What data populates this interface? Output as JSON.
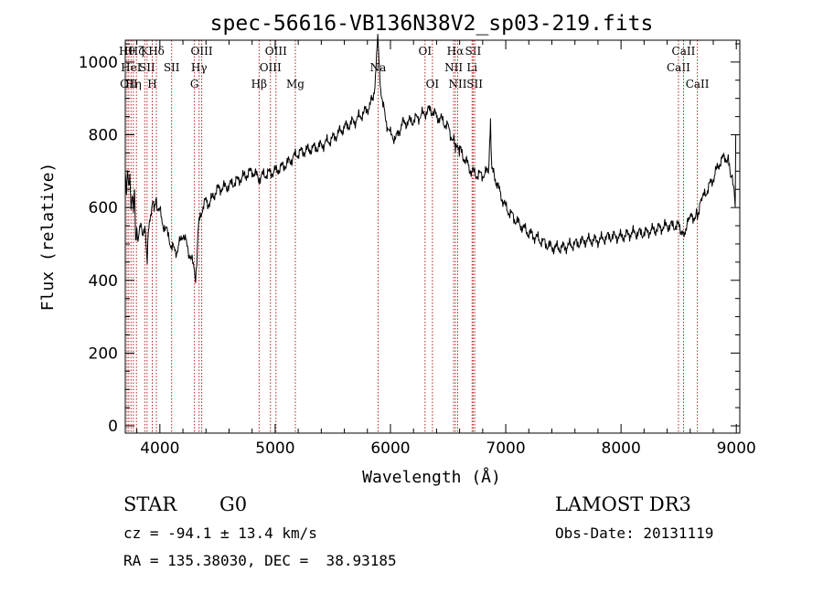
{
  "chart_data": {
    "type": "line",
    "title": "spec-56616-VB136N38V2_sp03-219.fits",
    "xlabel": "Wavelength (Å)",
    "ylabel": "Flux (relative)",
    "xlim": [
      3700,
      9030
    ],
    "ylim": [
      -20,
      1060
    ],
    "xticks": [
      4000,
      5000,
      6000,
      7000,
      8000,
      9000
    ],
    "yticks": [
      0,
      200,
      400,
      600,
      800,
      1000
    ],
    "series_color": "#000000",
    "line_color": "#b22222",
    "spectrum": {
      "x": [
        3700,
        3710,
        3720,
        3730,
        3740,
        3750,
        3760,
        3770,
        3780,
        3790,
        3800,
        3810,
        3830,
        3850,
        3870,
        3880,
        3890,
        3900,
        3910,
        3920,
        3930,
        3940,
        3950,
        3960,
        3970,
        3980,
        4000,
        4020,
        4050,
        4080,
        4100,
        4150,
        4200,
        4230,
        4260,
        4290,
        4300,
        4310,
        4320,
        4330,
        4340,
        4360,
        4400,
        4430,
        4460,
        4500,
        4600,
        4700,
        4800,
        4860,
        4900,
        5000,
        5100,
        5200,
        5300,
        5400,
        5500,
        5600,
        5700,
        5800,
        5850,
        5870,
        5880,
        5890,
        5895,
        5900,
        5910,
        5930,
        5960,
        6000,
        6050,
        6100,
        6200,
        6300,
        6350,
        6400,
        6450,
        6500,
        6550,
        6563,
        6600,
        6650,
        6700,
        6750,
        6800,
        6850,
        6868,
        6880,
        6900,
        6950,
        7000,
        7100,
        7200,
        7300,
        7400,
        7500,
        7600,
        7700,
        7800,
        7900,
        8000,
        8100,
        8200,
        8300,
        8400,
        8500,
        8542,
        8600,
        8662,
        8700,
        8750,
        8800,
        8850,
        8900,
        8930,
        8950,
        8960,
        8970,
        8980,
        8990,
        8995
      ],
      "y": [
        720,
        640,
        700,
        640,
        690,
        600,
        650,
        590,
        640,
        500,
        540,
        520,
        550,
        520,
        560,
        500,
        440,
        530,
        560,
        590,
        600,
        620,
        580,
        610,
        630,
        600,
        590,
        560,
        540,
        520,
        490,
        480,
        530,
        500,
        470,
        440,
        430,
        410,
        450,
        520,
        560,
        590,
        620,
        610,
        630,
        650,
        660,
        680,
        700,
        680,
        690,
        700,
        720,
        750,
        760,
        770,
        790,
        820,
        840,
        870,
        900,
        960,
        1020,
        1060,
        1040,
        1010,
        950,
        890,
        840,
        800,
        790,
        830,
        840,
        860,
        870,
        850,
        840,
        820,
        780,
        760,
        760,
        730,
        700,
        690,
        690,
        700,
        840,
        700,
        690,
        640,
        600,
        560,
        530,
        510,
        490,
        490,
        500,
        510,
        510,
        520,
        520,
        530,
        530,
        540,
        550,
        550,
        530,
        570,
        580,
        620,
        650,
        680,
        720,
        740,
        730,
        680,
        700,
        680,
        650,
        590,
        800
      ]
    },
    "spectral_lines": [
      {
        "wavelength": 3715,
        "label": "Hθ",
        "row": 0
      },
      {
        "wavelength": 3730,
        "label": "OII",
        "row": 2
      },
      {
        "wavelength": 3750,
        "label": "HeI",
        "row": 1
      },
      {
        "wavelength": 3770,
        "label": "Hη",
        "row": 2
      },
      {
        "wavelength": 3797,
        "label": "Hζ",
        "row": 0
      },
      {
        "wavelength": 3869,
        "label": "K",
        "row": 0
      },
      {
        "wavelength": 3889,
        "label": "SII",
        "row": 1
      },
      {
        "wavelength": 3934,
        "label": "H",
        "row": 2
      },
      {
        "wavelength": 3970,
        "label": "Hδ",
        "row": 0
      },
      {
        "wavelength": 4102,
        "label": "SII",
        "row": 1
      },
      {
        "wavelength": 4300,
        "label": "G",
        "row": 2
      },
      {
        "wavelength": 4340,
        "label": "Hγ",
        "row": 1
      },
      {
        "wavelength": 4363,
        "label": "OIII",
        "row": 0
      },
      {
        "wavelength": 4861,
        "label": "Hβ",
        "row": 2
      },
      {
        "wavelength": 4959,
        "label": "OIII",
        "row": 1
      },
      {
        "wavelength": 5007,
        "label": "OIII",
        "row": 0
      },
      {
        "wavelength": 5175,
        "label": "Mg",
        "row": 2
      },
      {
        "wavelength": 5893,
        "label": "Na",
        "row": 1
      },
      {
        "wavelength": 6300,
        "label": "OI",
        "row": 0
      },
      {
        "wavelength": 6364,
        "label": "OI",
        "row": 2
      },
      {
        "wavelength": 6548,
        "label": "NII",
        "row": 1
      },
      {
        "wavelength": 6563,
        "label": "Hα",
        "row": 0
      },
      {
        "wavelength": 6583,
        "label": "NII",
        "row": 2
      },
      {
        "wavelength": 6708,
        "label": "Li",
        "row": 1
      },
      {
        "wavelength": 6717,
        "label": "SII",
        "row": 0
      },
      {
        "wavelength": 6731,
        "label": "SII",
        "row": 2
      },
      {
        "wavelength": 8498,
        "label": "CaII",
        "row": 1
      },
      {
        "wavelength": 8542,
        "label": "CaII",
        "row": 0
      },
      {
        "wavelength": 8662,
        "label": "CaII",
        "row": 2
      }
    ]
  },
  "info": {
    "class_label": "STAR",
    "subclass": "G0",
    "survey": "LAMOST DR3",
    "redshift_text": "cz = -94.1 ± 13.4 km/s",
    "obs_date_text": "Obs-Date: 20131119",
    "coords_text": "RA = 135.38030, DEC =  38.93185"
  }
}
